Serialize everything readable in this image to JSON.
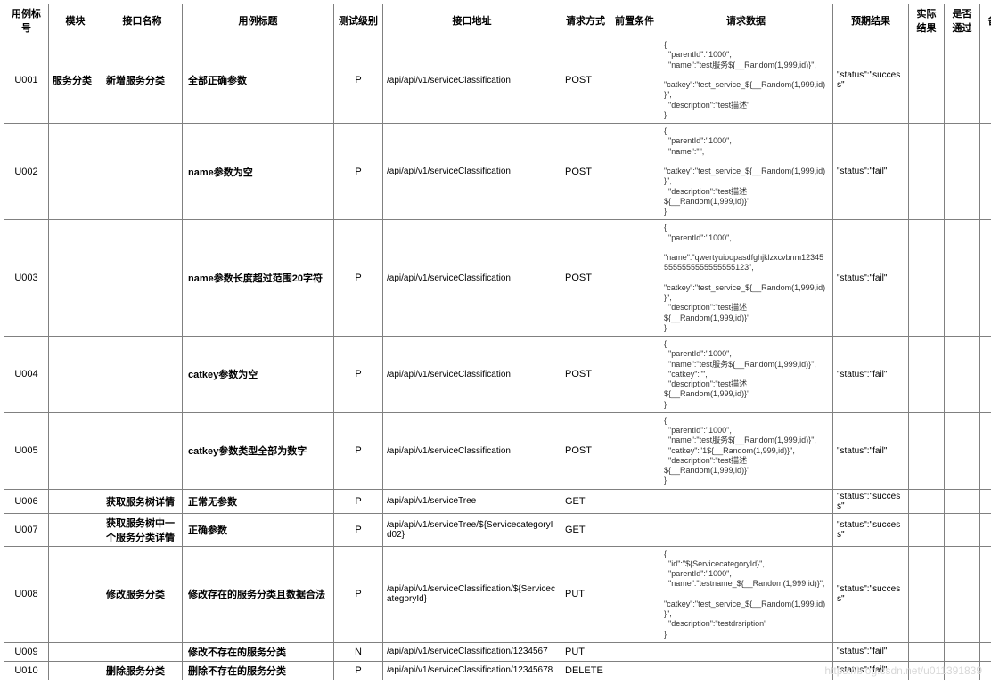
{
  "headers": [
    "用例标号",
    "模块",
    "接口名称",
    "用例标题",
    "测试级别",
    "接口地址",
    "请求方式",
    "前置条件",
    "请求数据",
    "预期结果",
    "实际结果",
    "是否通过",
    "备注"
  ],
  "watermark": "https://blog.csdn.net/u011391839",
  "colors": {
    "border": "#808080",
    "text": "#000000",
    "req_text": "#333333",
    "watermark": "#d8d8d8",
    "background": "#ffffff"
  },
  "rows": [
    {
      "id": "U001",
      "module": "服务分类",
      "interface": "新增服务分类",
      "title": "全部正确参数",
      "level": "P",
      "url": "/api/api/v1/serviceClassification",
      "method": "POST",
      "precond": "",
      "req": "{\n  \"parentId\":\"1000\",\n  \"name\":\"test服务${__Random(1,999,id)}\",\n  \"catkey\":\"test_service_${__Random(1,999,id)}\",\n  \"description\":\"test描述\"\n}",
      "expect": "\"status\":\"success\""
    },
    {
      "id": "U002",
      "module": "",
      "interface": "",
      "title": "name参数为空",
      "level": "P",
      "url": "/api/api/v1/serviceClassification",
      "method": "POST",
      "precond": "",
      "req": "{\n  \"parentId\":\"1000\",\n  \"name\":\"\",\n  \"catkey\":\"test_service_${__Random(1,999,id)}\",\n  \"description\":\"test描述${__Random(1,999,id)}\"\n}",
      "expect": "\"status\":\"fail\""
    },
    {
      "id": "U003",
      "module": "",
      "interface": "",
      "title": "name参数长度超过范围20字符",
      "level": "P",
      "url": "/api/api/v1/serviceClassification",
      "method": "POST",
      "precond": "",
      "req": "{\n  \"parentId\":\"1000\",\n  \"name\":\"qwertyuioopasdfghjklzxcvbnm123455555555555555555123\",\n  \"catkey\":\"test_service_${__Random(1,999,id)}\",\n  \"description\":\"test描述${__Random(1,999,id)}\"\n}",
      "expect": "\"status\":\"fail\""
    },
    {
      "id": "U004",
      "module": "",
      "interface": "",
      "title": "catkey参数为空",
      "level": "P",
      "url": "/api/api/v1/serviceClassification",
      "method": "POST",
      "precond": "",
      "req": "{\n  \"parentId\":\"1000\",\n  \"name\":\"test服务${__Random(1,999,id)}\",\n  \"catkey\":\"\",\n  \"description\":\"test描述${__Random(1,999,id)}\"\n}",
      "expect": "\"status\":\"fail\""
    },
    {
      "id": "U005",
      "module": "",
      "interface": "",
      "title": "catkey参数类型全部为数字",
      "level": "P",
      "url": "/api/api/v1/serviceClassification",
      "method": "POST",
      "precond": "",
      "req": "{\n  \"parentId\":\"1000\",\n  \"name\":\"test服务${__Random(1,999,id)}\",\n  \"catkey\":\"1${__Random(1,999,id)}\",\n  \"description\":\"test描述${__Random(1,999,id)}\"\n}",
      "expect": "\"status\":\"fail\""
    },
    {
      "id": "U006",
      "module": "",
      "interface": "获取服务树详情",
      "title": "正常无参数",
      "level": "P",
      "url": "/api/api/v1/serviceTree",
      "method": "GET",
      "precond": "",
      "req": "",
      "expect": "\"status\":\"success\""
    },
    {
      "id": "U007",
      "module": "",
      "interface": "获取服务树中一个服务分类详情",
      "title": "正确参数",
      "level": "P",
      "url": "/api/api/v1/serviceTree/${ServicecategoryId02}",
      "method": "GET",
      "precond": "",
      "req": "",
      "expect": "\"status\":\"success\""
    },
    {
      "id": "U008",
      "module": "",
      "interface": "修改服务分类",
      "title": "修改存在的服务分类且数据合法",
      "level": "P",
      "url": "/api/api/v1/serviceClassification/${ServicecategoryId}",
      "method": "PUT",
      "precond": "",
      "req": "{\n  \"id\":\"${ServicecategoryId}\",\n  \"parentId\":\"1000\",\n  \"name\":\"testname_${__Random(1,999,id)}\",\n  \"catkey\":\"test_service_${__Random(1,999,id)}\",\n  \"description\":\"testdrsription\"\n}",
      "expect": "\"status\":\"success\""
    },
    {
      "id": "U009",
      "module": "",
      "interface": "",
      "title": "修改不存在的服务分类",
      "level": "N",
      "url": "/api/api/v1/serviceClassification/1234567",
      "method": "PUT",
      "precond": "",
      "req": "",
      "expect": "\"status\":\"fail\""
    },
    {
      "id": "U010",
      "module": "",
      "interface": "删除服务分类",
      "title": "删除不存在的服务分类",
      "level": "P",
      "url": "/api/api/v1/serviceClassification/12345678",
      "method": "DELETE",
      "precond": "",
      "req": "",
      "expect": "\"status\":\"fail\""
    }
  ]
}
